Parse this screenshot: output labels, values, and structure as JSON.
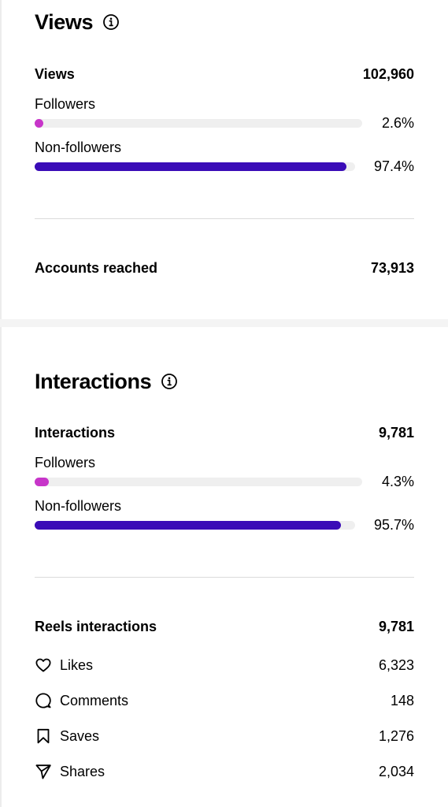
{
  "views_section": {
    "title": "Views",
    "total": {
      "label": "Views",
      "value": "102,960"
    },
    "followers": {
      "label": "Followers",
      "pct_text": "2.6%",
      "pct": 2.6,
      "color": "#c735c9"
    },
    "non_followers": {
      "label": "Non-followers",
      "pct_text": "97.4%",
      "pct": 97.4,
      "color": "#3a0cb7"
    },
    "accounts_reached": {
      "label": "Accounts reached",
      "value": "73,913"
    }
  },
  "interactions_section": {
    "title": "Interactions",
    "total": {
      "label": "Interactions",
      "value": "9,781"
    },
    "followers": {
      "label": "Followers",
      "pct_text": "4.3%",
      "pct": 4.3,
      "color": "#c735c9"
    },
    "non_followers": {
      "label": "Non-followers",
      "pct_text": "95.7%",
      "pct": 95.7,
      "color": "#3a0cb7"
    },
    "reels": {
      "label": "Reels interactions",
      "value": "9,781",
      "items": [
        {
          "label": "Likes",
          "value": "6,323",
          "icon": "heart-icon"
        },
        {
          "label": "Comments",
          "value": "148",
          "icon": "comment-icon"
        },
        {
          "label": "Saves",
          "value": "1,276",
          "icon": "bookmark-icon"
        },
        {
          "label": "Shares",
          "value": "2,034",
          "icon": "share-icon"
        }
      ]
    }
  }
}
